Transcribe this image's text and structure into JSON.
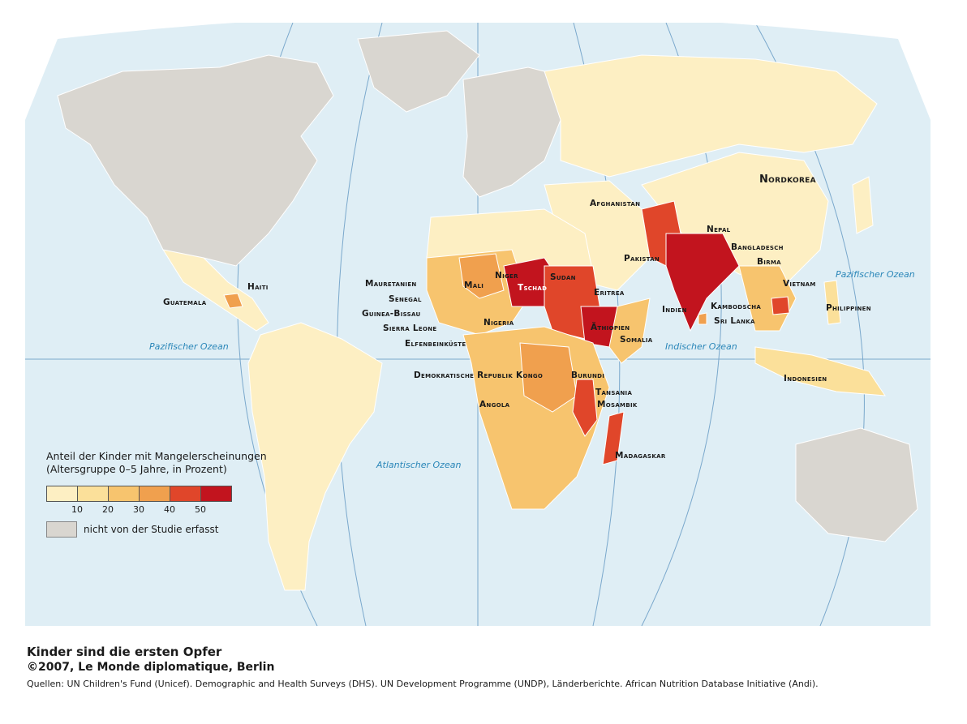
{
  "title": "Kinder sind die ersten Opfer",
  "credit": "©2007, Le Monde diplomatique, Berlin",
  "sources": "Quellen: UN Children's Fund (Unicef). Demographic and Health Surveys (DHS). UN Development Programme (UNDP), Länderberichte. African Nutrition Database Initiative (Andi).",
  "colors": {
    "ocean": "#dfeef5",
    "grid": "#7aa8cc",
    "no_data": "#d9d6d0",
    "class_0_10": "#fdefc3",
    "class_10_20": "#fbe09a",
    "class_20_30": "#f7c46e",
    "class_30_40": "#f0a04e",
    "class_40_50": "#e0462a",
    "class_50_plus": "#c2141e"
  },
  "legend": {
    "title_line1": "Anteil der Kinder mit Mangelerscheinungen",
    "title_line2": "(Altersgruppe 0–5 Jahre, in Prozent)",
    "ticks": [
      "10",
      "20",
      "30",
      "40",
      "50"
    ],
    "no_data_label": "nicht von der Studie erfasst"
  },
  "oceans": {
    "pacific_west": "Pazifischer Ozean",
    "pacific_east": "Pazifischer Ozean",
    "atlantic": "Atlantischer Ozean",
    "indian": "Indischer Ozean"
  },
  "labels": {
    "nordkorea": "Nordkorea",
    "afghanistan": "Afghanistan",
    "nepal": "Nepal",
    "bangladesch": "Bangladesch",
    "pakistan": "Pakistan",
    "birma": "Birma",
    "vietnam": "Vietnam",
    "philippinen": "Philippinen",
    "indien": "Indien",
    "kambodscha": "Kambodscha",
    "sri_lanka": "Sri Lanka",
    "indonesien": "Indonesien",
    "haiti": "Haiti",
    "guatemala": "Guatemala",
    "mauretanien": "Mauretanien",
    "senegal": "Senegal",
    "guinea_bissau": "Guinea-Bissau",
    "sierra_leone": "Sierra Leone",
    "elfenbeinkueste": "Elfenbeinküste",
    "mali": "Mali",
    "niger": "Niger",
    "tschad": "Tschad",
    "sudan": "Sudan",
    "eritrea": "Eritrea",
    "nigeria": "Nigeria",
    "aethiopien": "Äthiopien",
    "somalia": "Somalia",
    "dr_kongo": "Demokratische Republik Kongo",
    "burundi": "Burundi",
    "tansania": "Tansania",
    "mosambik": "Mosambik",
    "angola": "Angola",
    "madagaskar": "Madagaskar"
  }
}
